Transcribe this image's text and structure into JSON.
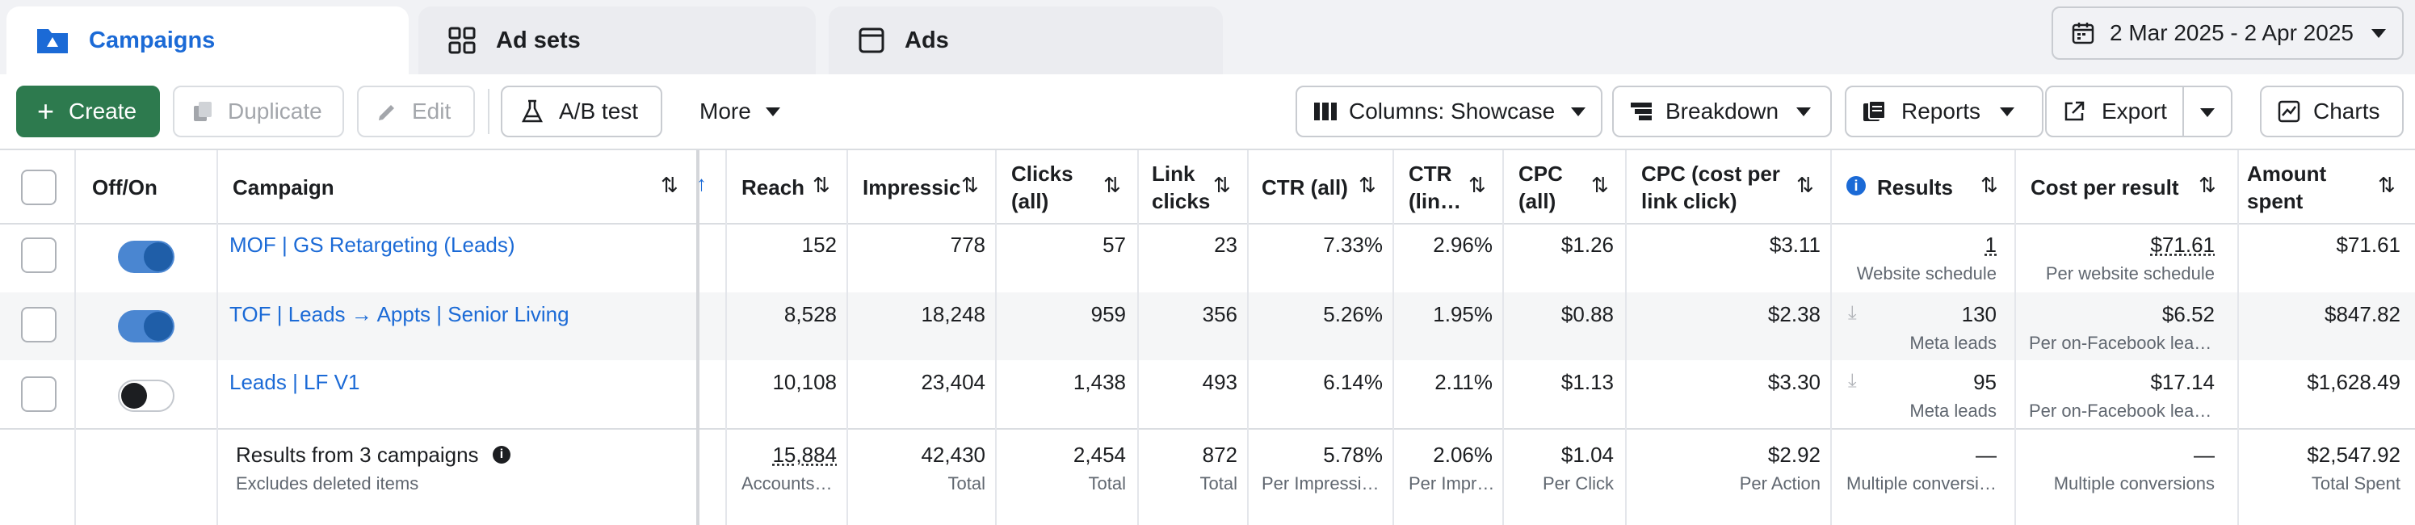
{
  "tabs": [
    {
      "label": "Campaigns",
      "icon": "folder-icon"
    },
    {
      "label": "Ad sets",
      "icon": "grid-icon"
    },
    {
      "label": "Ads",
      "icon": "ad-icon"
    }
  ],
  "date_range": "2 Mar 2025 - 2 Apr 2025",
  "toolbar": {
    "create": "Create",
    "duplicate": "Duplicate",
    "edit": "Edit",
    "ab_test": "A/B test",
    "more": "More",
    "columns": "Columns: Showcase",
    "breakdown": "Breakdown",
    "reports": "Reports",
    "export": "Export",
    "charts": "Charts"
  },
  "columns": {
    "off_on": "Off/On",
    "campaign": "Campaign",
    "reach": "Reach",
    "impressions": "Impressic",
    "clicks_all": [
      "Clicks",
      "(all)"
    ],
    "link_clicks": [
      "Link",
      "clicks"
    ],
    "ctr_all": "CTR (all)",
    "ctr_link": [
      "CTR",
      "(lin…"
    ],
    "cpc_all": [
      "CPC",
      "(all)"
    ],
    "cpc_link": [
      "CPC (cost per",
      "link click)"
    ],
    "results": "Results",
    "cost_per_result": "Cost per result",
    "amount_spent": [
      "Amount",
      "spent"
    ]
  },
  "rows": [
    {
      "toggle": "on",
      "campaign": "MOF | GS Retargeting (Leads)",
      "reach": "152",
      "impressions": "778",
      "clicks_all": "57",
      "link_clicks": "23",
      "ctr_all": "7.33%",
      "ctr_link": "2.96%",
      "cpc_all": "$1.26",
      "cpc_link": "$3.11",
      "results": "1",
      "results_sub": "Website schedule",
      "cost_per_result": "$71.61",
      "cost_per_result_sub": "Per website schedule",
      "amount_spent": "$71.61"
    },
    {
      "toggle": "on",
      "campaign": "TOF | Leads → Appts | Senior Living",
      "reach": "8,528",
      "impressions": "18,248",
      "clicks_all": "959",
      "link_clicks": "356",
      "ctr_all": "5.26%",
      "ctr_link": "1.95%",
      "cpc_all": "$0.88",
      "cpc_link": "$2.38",
      "results": "130",
      "results_sub": "Meta leads",
      "cost_per_result": "$6.52",
      "cost_per_result_sub": "Per on-Facebook lea…",
      "amount_spent": "$847.82"
    },
    {
      "toggle": "off",
      "campaign": "Leads | LF V1",
      "reach": "10,108",
      "impressions": "23,404",
      "clicks_all": "1,438",
      "link_clicks": "493",
      "ctr_all": "6.14%",
      "ctr_link": "2.11%",
      "cpc_all": "$1.13",
      "cpc_link": "$3.30",
      "results": "95",
      "results_sub": "Meta leads",
      "cost_per_result": "$17.14",
      "cost_per_result_sub": "Per on-Facebook lea…",
      "amount_spent": "$1,628.49"
    }
  ],
  "totals": {
    "label": "Results from 3 campaigns",
    "sub": "Excludes deleted items",
    "reach": "15,884",
    "reach_sub": "Accounts…",
    "impressions": "42,430",
    "impressions_sub": "Total",
    "clicks_all": "2,454",
    "clicks_all_sub": "Total",
    "link_clicks": "872",
    "link_clicks_sub": "Total",
    "ctr_all": "5.78%",
    "ctr_all_sub": "Per Impressi…",
    "ctr_link": "2.06%",
    "ctr_link_sub": "Per Impr…",
    "cpc_all": "$1.04",
    "cpc_all_sub": "Per Click",
    "cpc_link": "$2.92",
    "cpc_link_sub": "Per Action",
    "results": "—",
    "results_sub": "Multiple conversi…",
    "cost_per_result": "—",
    "cost_per_result_sub": "Multiple conversions",
    "amount_spent": "$2,547.92",
    "amount_spent_sub": "Total Spent"
  }
}
